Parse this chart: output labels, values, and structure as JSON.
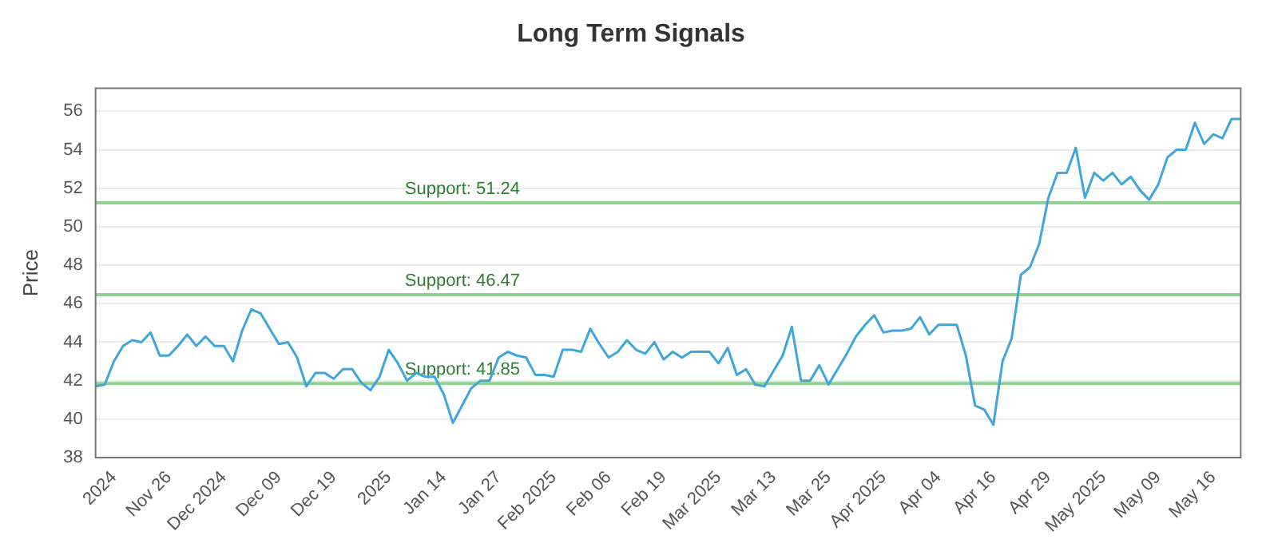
{
  "chart_data": {
    "type": "line",
    "title": "Long Term Signals",
    "ylabel": "Price",
    "categories": [
      null,
      null,
      "2024",
      null,
      null,
      null,
      null,
      null,
      "Nov 26",
      null,
      null,
      null,
      null,
      null,
      "Dec 2024",
      null,
      null,
      null,
      null,
      null,
      "Dec 09",
      null,
      null,
      null,
      null,
      null,
      "Dec 19",
      null,
      null,
      null,
      null,
      null,
      "2025",
      null,
      null,
      null,
      null,
      null,
      "Jan 14",
      null,
      null,
      null,
      null,
      null,
      "Jan 27",
      null,
      null,
      null,
      null,
      null,
      "Feb 2025",
      null,
      null,
      null,
      null,
      null,
      "Feb 06",
      null,
      null,
      null,
      null,
      null,
      "Feb 19",
      null,
      null,
      null,
      null,
      null,
      "Mar 2025",
      null,
      null,
      null,
      null,
      null,
      "Mar 13",
      null,
      null,
      null,
      null,
      null,
      "Mar 25",
      null,
      null,
      null,
      null,
      null,
      "Apr 2025",
      null,
      null,
      null,
      null,
      null,
      "Apr 04",
      null,
      null,
      null,
      null,
      null,
      "Apr 16",
      null,
      null,
      null,
      null,
      null,
      "Apr 29",
      null,
      null,
      null,
      null,
      null,
      "May 2025",
      null,
      null,
      null,
      null,
      null,
      "May 09",
      null,
      null,
      null,
      null,
      null,
      "May 16",
      null,
      null,
      null
    ],
    "series": [
      {
        "color": "#3ea6dc",
        "values": [
          41.7,
          41.8,
          43.0,
          43.8,
          44.1,
          44.0,
          44.5,
          43.3,
          43.3,
          43.8,
          44.4,
          43.8,
          44.3,
          43.8,
          43.8,
          43.0,
          44.6,
          45.7,
          45.5,
          44.7,
          43.9,
          44.0,
          43.2,
          41.7,
          42.4,
          42.4,
          42.1,
          42.6,
          42.6,
          41.9,
          41.5,
          42.2,
          43.6,
          42.9,
          42.0,
          42.4,
          42.2,
          42.2,
          41.3,
          39.8,
          40.7,
          41.6,
          42.0,
          42.0,
          43.2,
          43.5,
          43.3,
          43.2,
          42.3,
          42.3,
          42.2,
          43.6,
          43.6,
          43.5,
          44.7,
          43.9,
          43.2,
          43.5,
          44.1,
          43.6,
          43.4,
          44.0,
          43.1,
          43.5,
          43.2,
          43.5,
          43.5,
          43.5,
          42.9,
          43.7,
          42.3,
          42.6,
          41.8,
          41.7,
          42.5,
          43.3,
          44.8,
          42.0,
          42.0,
          42.8,
          41.8,
          42.6,
          43.4,
          44.3,
          44.9,
          45.4,
          44.5,
          44.6,
          44.6,
          44.7,
          45.3,
          44.4,
          44.9,
          44.9,
          44.9,
          43.3,
          40.7,
          40.5,
          39.7,
          43.0,
          44.2,
          47.5,
          47.9,
          49.1,
          51.5,
          52.8,
          52.8,
          54.1,
          51.5,
          52.8,
          52.4,
          52.8,
          52.2,
          52.6,
          51.9,
          51.4,
          52.2,
          53.6,
          54.0,
          54.0,
          55.4,
          54.3,
          54.8,
          54.6,
          55.6,
          55.6
        ]
      }
    ],
    "ylim": [
      38,
      57.2
    ],
    "yticks": [
      38,
      40,
      42,
      44,
      46,
      48,
      50,
      52,
      54,
      56
    ],
    "grid": "y",
    "legend": false,
    "marker": "none",
    "line_style": "solid",
    "ref_lines": [
      {
        "axis": "y",
        "value": 51.24,
        "label": "Support: 51.24",
        "color": "#8fd18f"
      },
      {
        "axis": "y",
        "value": 46.47,
        "label": "Support: 46.47",
        "color": "#8fd18f"
      },
      {
        "axis": "y",
        "value": 41.85,
        "label": "Support: 41.85",
        "color": "#8fd18f"
      }
    ]
  }
}
